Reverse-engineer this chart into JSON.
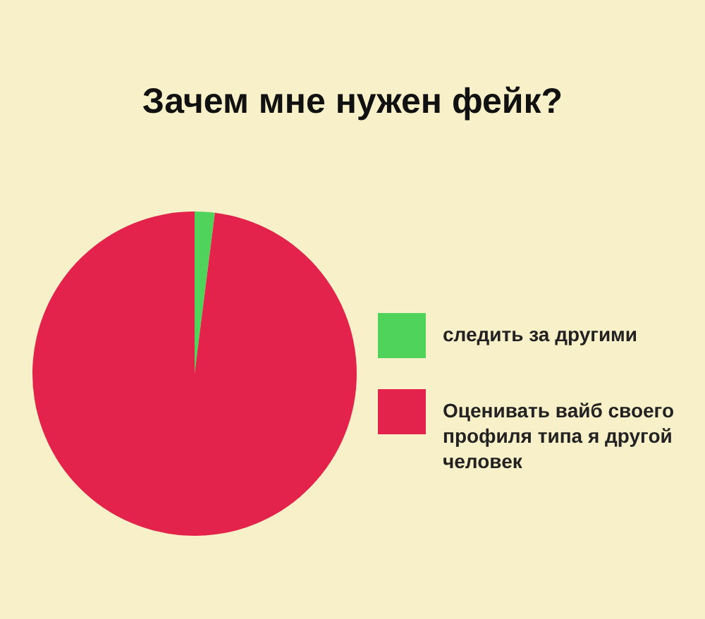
{
  "chart_data": {
    "type": "pie",
    "title": "Зачем мне нужен фейк?",
    "categories": [
      "следить за другими",
      "Оценивать вайб своего профиля типа я другой человек"
    ],
    "values": [
      2,
      98
    ],
    "colors": [
      "#4fd35a",
      "#e3234b"
    ],
    "legend": "right"
  }
}
